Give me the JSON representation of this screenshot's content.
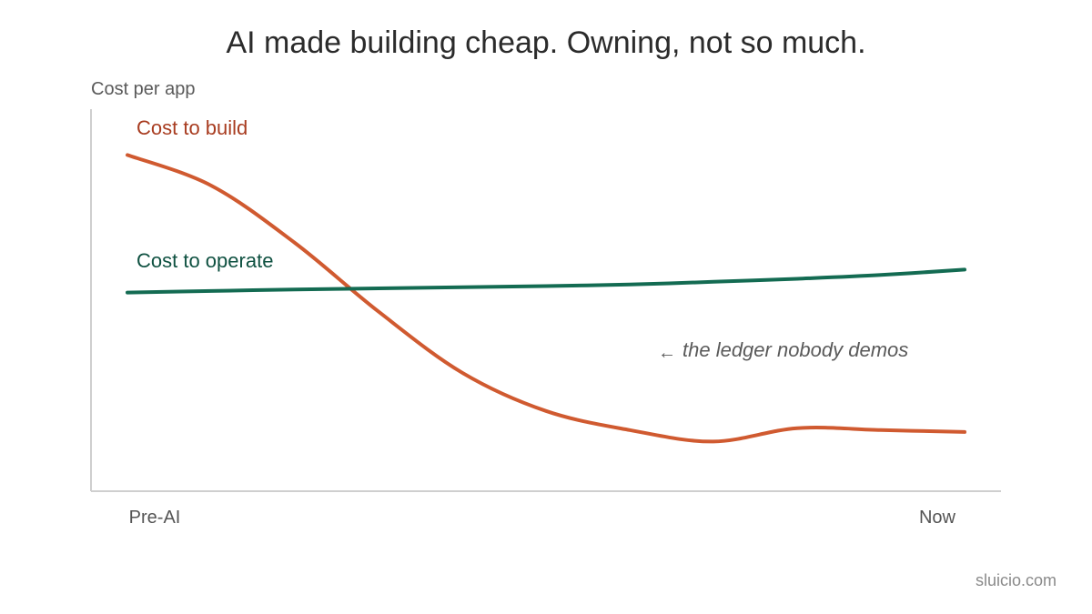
{
  "title": "AI made building cheap. Owning, not so much.",
  "footer": "sluicio.com",
  "chart_data": {
    "type": "line",
    "title": "AI made building cheap. Owning, not so much.",
    "ylabel": "Cost per app",
    "xlabel": "",
    "x_tick_labels": [
      "Pre-AI",
      "Now"
    ],
    "x": [
      0,
      0.1,
      0.2,
      0.3,
      0.4,
      0.5,
      0.6,
      0.7,
      0.8,
      0.9,
      1.0
    ],
    "ylim": [
      0,
      100
    ],
    "grid": false,
    "legend": "inline labels",
    "series": [
      {
        "name": "Cost to build",
        "color": "#d05a30",
        "label_color": "#a83c20",
        "values": [
          88,
          80,
          65,
          47,
          31,
          21,
          16,
          13,
          16.5,
          16,
          15.5
        ]
      },
      {
        "name": "Cost to operate",
        "color": "#136b52",
        "label_color": "#0f5141",
        "values": [
          52,
          52.4,
          52.8,
          53.1,
          53.4,
          53.7,
          54.1,
          54.8,
          55.6,
          56.6,
          58
        ]
      }
    ],
    "annotations": [
      {
        "arrow": "←",
        "text": "the ledger nobody demos"
      }
    ]
  }
}
